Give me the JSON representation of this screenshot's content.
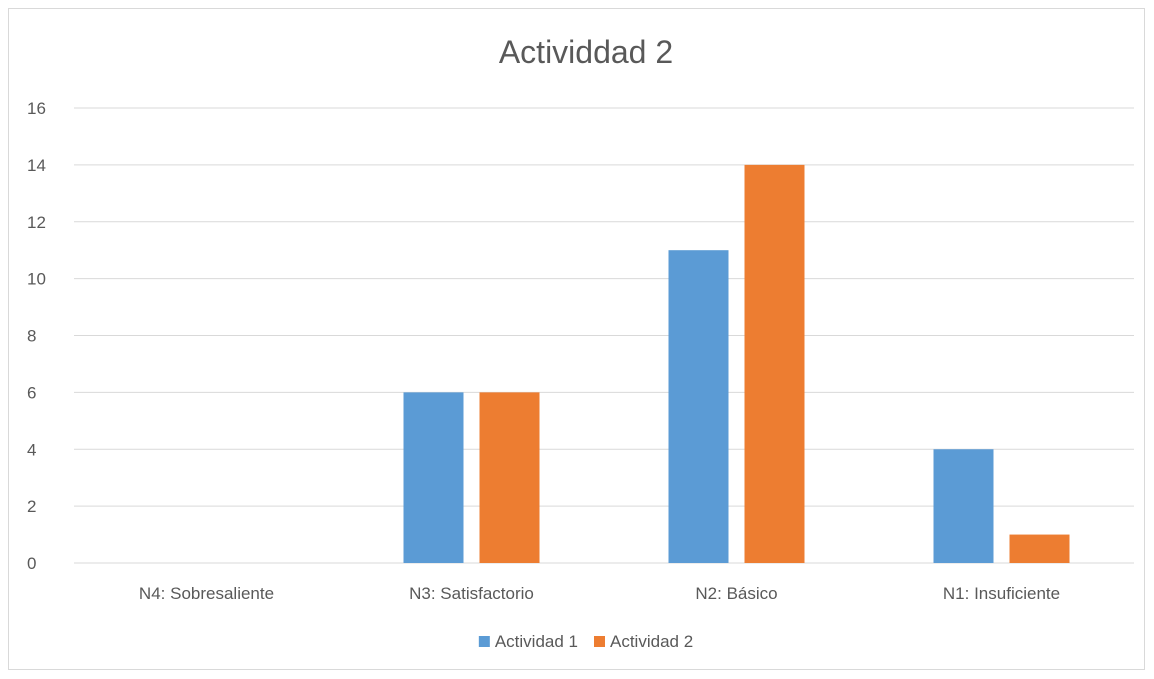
{
  "chart_data": {
    "type": "bar",
    "title": "Actividdad 2",
    "categories": [
      "N4: Sobresaliente",
      "N3: Satisfactorio",
      "N2: Básico",
      "N1: Insuficiente"
    ],
    "series": [
      {
        "name": "Actividad 1",
        "color": "#5b9bd5",
        "values": [
          0,
          6,
          11,
          4
        ]
      },
      {
        "name": "Actividad 2",
        "color": "#ed7d31",
        "values": [
          0,
          6,
          14,
          1
        ]
      }
    ],
    "ylim": [
      0,
      16
    ],
    "yticks": [
      0,
      2,
      4,
      6,
      8,
      10,
      12,
      14,
      16
    ],
    "grid": true,
    "gridColor": "#d9d9d9",
    "legend": "bottom"
  }
}
